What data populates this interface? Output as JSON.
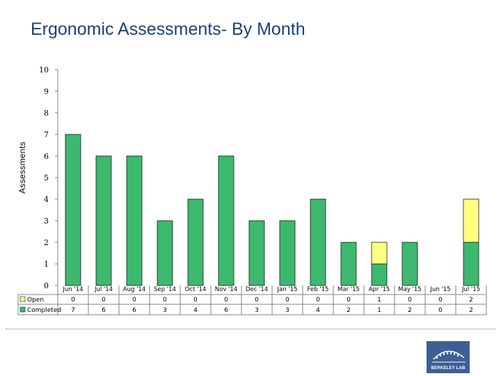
{
  "page": {
    "title": "Ergonomic Assessments- By Month",
    "logo_text": "BERKELEY LAB"
  },
  "chart_data": {
    "type": "bar",
    "stacked": true,
    "title": "Ergonomic Assessments- By Month",
    "xlabel": "",
    "ylabel": "Assessments",
    "ylim": [
      0,
      10
    ],
    "yticks": [
      0,
      1,
      2,
      3,
      4,
      5,
      6,
      7,
      8,
      9,
      10
    ],
    "grid": false,
    "data_table": true,
    "categories": [
      "Jun '14",
      "Jul '14",
      "Aug '14",
      "Sep '14",
      "Oct '14",
      "Nov '14",
      "Dec '14",
      "Jan '15",
      "Feb '15",
      "Mar '15",
      "Apr '15",
      "May '15",
      "Jun '15",
      "Jul '15"
    ],
    "series": [
      {
        "name": "Completed",
        "color": "#3cb96e",
        "values": [
          7,
          6,
          6,
          3,
          4,
          6,
          3,
          3,
          4,
          2,
          1,
          2,
          0,
          2
        ]
      },
      {
        "name": "Open",
        "color": "#ffff80",
        "values": [
          0,
          0,
          0,
          0,
          0,
          0,
          0,
          0,
          0,
          0,
          1,
          0,
          0,
          2
        ]
      }
    ],
    "table_rows": [
      "Open",
      "Completed"
    ]
  }
}
